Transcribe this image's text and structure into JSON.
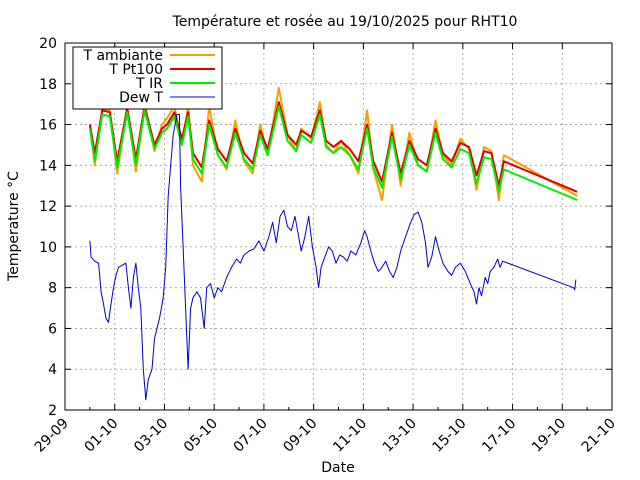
{
  "chart_data": {
    "type": "line",
    "title": "Température et rosée au 19/10/2025 pour RHT10",
    "xlabel": "Date",
    "ylabel": "Temperature °C",
    "x_ticks": [
      "29-09",
      "01-10",
      "03-10",
      "05-10",
      "07-10",
      "09-10",
      "11-10",
      "13-10",
      "15-10",
      "17-10",
      "19-10",
      "21-10"
    ],
    "xlim_days": [
      0,
      22
    ],
    "ylim": [
      2,
      20
    ],
    "y_ticks": [
      "2",
      "4",
      "6",
      "8",
      "10",
      "12",
      "14",
      "16",
      "18",
      "20"
    ],
    "grid": true,
    "legend_position": "top-left",
    "series": [
      {
        "name": "T ambiante",
        "color": "#f5a000",
        "points": [
          [
            1.0,
            16.0
          ],
          [
            1.2,
            14.0
          ],
          [
            1.5,
            16.8
          ],
          [
            1.8,
            16.7
          ],
          [
            2.1,
            13.6
          ],
          [
            2.5,
            16.9
          ],
          [
            2.85,
            13.7
          ],
          [
            3.2,
            17.0
          ],
          [
            3.6,
            14.7
          ],
          [
            3.9,
            16.0
          ],
          [
            4.1,
            16.3
          ],
          [
            4.4,
            16.9
          ],
          [
            4.7,
            15.0
          ],
          [
            4.95,
            16.9
          ],
          [
            5.15,
            14.0
          ],
          [
            5.5,
            13.2
          ],
          [
            5.8,
            16.9
          ],
          [
            6.15,
            14.5
          ],
          [
            6.5,
            13.8
          ],
          [
            6.85,
            16.2
          ],
          [
            7.2,
            14.2
          ],
          [
            7.55,
            13.6
          ],
          [
            7.85,
            16.0
          ],
          [
            8.15,
            14.5
          ],
          [
            8.6,
            17.8
          ],
          [
            8.95,
            15.5
          ],
          [
            9.3,
            14.7
          ],
          [
            9.5,
            15.8
          ],
          [
            9.9,
            15.3
          ],
          [
            10.25,
            17.1
          ],
          [
            10.5,
            15.0
          ],
          [
            10.8,
            14.6
          ],
          [
            11.1,
            15.2
          ],
          [
            11.45,
            14.5
          ],
          [
            11.8,
            13.6
          ],
          [
            12.15,
            16.7
          ],
          [
            12.4,
            13.8
          ],
          [
            12.75,
            12.3
          ],
          [
            13.15,
            16.0
          ],
          [
            13.5,
            13.0
          ],
          [
            13.85,
            15.6
          ],
          [
            14.2,
            14.0
          ],
          [
            14.55,
            13.7
          ],
          [
            14.9,
            16.2
          ],
          [
            15.2,
            14.5
          ],
          [
            15.55,
            14.0
          ],
          [
            15.9,
            15.3
          ],
          [
            16.25,
            14.8
          ],
          [
            16.55,
            12.8
          ],
          [
            16.85,
            14.9
          ],
          [
            17.15,
            14.7
          ],
          [
            17.45,
            12.3
          ],
          [
            17.65,
            14.5
          ],
          [
            20.6,
            12.5
          ]
        ]
      },
      {
        "name": "T Pt100",
        "color": "#dd0000",
        "points": [
          [
            1.0,
            16.0
          ],
          [
            1.2,
            14.6
          ],
          [
            1.5,
            16.7
          ],
          [
            1.8,
            16.6
          ],
          [
            2.1,
            14.2
          ],
          [
            2.5,
            16.8
          ],
          [
            2.85,
            14.3
          ],
          [
            3.2,
            16.9
          ],
          [
            3.6,
            15.0
          ],
          [
            3.9,
            15.8
          ],
          [
            4.1,
            16.0
          ],
          [
            4.4,
            16.6
          ],
          [
            4.7,
            15.3
          ],
          [
            4.95,
            16.6
          ],
          [
            5.15,
            14.6
          ],
          [
            5.5,
            13.9
          ],
          [
            5.8,
            16.2
          ],
          [
            6.15,
            14.8
          ],
          [
            6.5,
            14.2
          ],
          [
            6.85,
            15.8
          ],
          [
            7.2,
            14.6
          ],
          [
            7.55,
            14.1
          ],
          [
            7.85,
            15.7
          ],
          [
            8.15,
            14.8
          ],
          [
            8.6,
            17.1
          ],
          [
            8.95,
            15.5
          ],
          [
            9.3,
            15.0
          ],
          [
            9.5,
            15.7
          ],
          [
            9.9,
            15.4
          ],
          [
            10.25,
            16.7
          ],
          [
            10.5,
            15.2
          ],
          [
            10.8,
            14.9
          ],
          [
            11.1,
            15.2
          ],
          [
            11.45,
            14.8
          ],
          [
            11.8,
            14.2
          ],
          [
            12.15,
            16.0
          ],
          [
            12.4,
            14.2
          ],
          [
            12.75,
            13.2
          ],
          [
            13.15,
            15.6
          ],
          [
            13.5,
            13.6
          ],
          [
            13.85,
            15.2
          ],
          [
            14.2,
            14.3
          ],
          [
            14.55,
            14.0
          ],
          [
            14.9,
            15.8
          ],
          [
            15.2,
            14.6
          ],
          [
            15.55,
            14.2
          ],
          [
            15.9,
            15.1
          ],
          [
            16.25,
            14.9
          ],
          [
            16.55,
            13.5
          ],
          [
            16.85,
            14.7
          ],
          [
            17.15,
            14.6
          ],
          [
            17.45,
            13.0
          ],
          [
            17.65,
            14.2
          ],
          [
            20.6,
            12.7
          ]
        ]
      },
      {
        "name": "T IR",
        "color": "#00ee00",
        "points": [
          [
            1.0,
            15.8
          ],
          [
            1.2,
            14.2
          ],
          [
            1.5,
            16.5
          ],
          [
            1.8,
            16.4
          ],
          [
            2.1,
            13.9
          ],
          [
            2.5,
            16.6
          ],
          [
            2.85,
            14.0
          ],
          [
            3.2,
            16.7
          ],
          [
            3.6,
            14.8
          ],
          [
            3.9,
            15.6
          ],
          [
            4.1,
            15.8
          ],
          [
            4.4,
            16.4
          ],
          [
            4.7,
            15.0
          ],
          [
            4.95,
            16.4
          ],
          [
            5.15,
            14.3
          ],
          [
            5.5,
            13.6
          ],
          [
            5.8,
            16.0
          ],
          [
            6.15,
            14.5
          ],
          [
            6.5,
            13.9
          ],
          [
            6.85,
            15.6
          ],
          [
            7.2,
            14.3
          ],
          [
            7.55,
            13.8
          ],
          [
            7.85,
            15.5
          ],
          [
            8.15,
            14.5
          ],
          [
            8.6,
            16.9
          ],
          [
            8.95,
            15.2
          ],
          [
            9.3,
            14.7
          ],
          [
            9.5,
            15.5
          ],
          [
            9.9,
            15.1
          ],
          [
            10.25,
            16.5
          ],
          [
            10.5,
            14.9
          ],
          [
            10.8,
            14.6
          ],
          [
            11.1,
            14.9
          ],
          [
            11.45,
            14.5
          ],
          [
            11.8,
            13.8
          ],
          [
            12.15,
            15.8
          ],
          [
            12.4,
            13.9
          ],
          [
            12.75,
            12.9
          ],
          [
            13.15,
            15.4
          ],
          [
            13.5,
            13.3
          ],
          [
            13.85,
            15.0
          ],
          [
            14.2,
            14.0
          ],
          [
            14.55,
            13.7
          ],
          [
            14.9,
            15.6
          ],
          [
            15.2,
            14.3
          ],
          [
            15.55,
            13.9
          ],
          [
            15.9,
            14.8
          ],
          [
            16.25,
            14.6
          ],
          [
            16.55,
            13.1
          ],
          [
            16.85,
            14.4
          ],
          [
            17.15,
            14.3
          ],
          [
            17.45,
            12.7
          ],
          [
            17.65,
            13.8
          ],
          [
            20.6,
            12.3
          ]
        ]
      },
      {
        "name": "Dew T",
        "color": "#0000cc",
        "points": [
          [
            1.0,
            10.3
          ],
          [
            1.05,
            9.5
          ],
          [
            1.2,
            9.3
          ],
          [
            1.35,
            9.2
          ],
          [
            1.45,
            7.8
          ],
          [
            1.55,
            7.2
          ],
          [
            1.65,
            6.5
          ],
          [
            1.75,
            6.3
          ],
          [
            1.85,
            7.2
          ],
          [
            1.95,
            8.0
          ],
          [
            2.05,
            8.6
          ],
          [
            2.15,
            9.0
          ],
          [
            2.3,
            9.1
          ],
          [
            2.45,
            9.2
          ],
          [
            2.55,
            8.0
          ],
          [
            2.65,
            7.0
          ],
          [
            2.75,
            8.5
          ],
          [
            2.85,
            9.2
          ],
          [
            2.95,
            8.0
          ],
          [
            3.05,
            7.0
          ],
          [
            3.15,
            4.0
          ],
          [
            3.25,
            2.5
          ],
          [
            3.35,
            3.5
          ],
          [
            3.5,
            4.0
          ],
          [
            3.6,
            5.5
          ],
          [
            3.7,
            6.0
          ],
          [
            3.8,
            6.5
          ],
          [
            3.95,
            7.5
          ],
          [
            4.05,
            9.0
          ],
          [
            4.15,
            12.5
          ],
          [
            4.25,
            14.0
          ],
          [
            4.35,
            15.5
          ],
          [
            4.5,
            16.5
          ],
          [
            4.6,
            16.5
          ],
          [
            4.65,
            13.0
          ],
          [
            4.75,
            10.0
          ],
          [
            4.85,
            7.0
          ],
          [
            4.95,
            4.0
          ],
          [
            5.05,
            7.0
          ],
          [
            5.15,
            7.5
          ],
          [
            5.3,
            7.8
          ],
          [
            5.45,
            7.5
          ],
          [
            5.6,
            6.0
          ],
          [
            5.7,
            8.0
          ],
          [
            5.85,
            8.2
          ],
          [
            6.0,
            7.5
          ],
          [
            6.15,
            8.0
          ],
          [
            6.3,
            7.8
          ],
          [
            6.5,
            8.5
          ],
          [
            6.7,
            9.0
          ],
          [
            6.9,
            9.4
          ],
          [
            7.05,
            9.2
          ],
          [
            7.2,
            9.6
          ],
          [
            7.4,
            9.8
          ],
          [
            7.6,
            9.9
          ],
          [
            7.8,
            10.3
          ],
          [
            8.0,
            9.8
          ],
          [
            8.2,
            10.5
          ],
          [
            8.35,
            11.2
          ],
          [
            8.5,
            10.2
          ],
          [
            8.65,
            11.5
          ],
          [
            8.8,
            11.8
          ],
          [
            8.95,
            11.0
          ],
          [
            9.1,
            10.8
          ],
          [
            9.25,
            11.5
          ],
          [
            9.4,
            10.5
          ],
          [
            9.5,
            9.8
          ],
          [
            9.65,
            10.5
          ],
          [
            9.8,
            11.5
          ],
          [
            9.95,
            10.0
          ],
          [
            10.1,
            9.0
          ],
          [
            10.2,
            8.0
          ],
          [
            10.3,
            9.0
          ],
          [
            10.45,
            9.5
          ],
          [
            10.6,
            10.0
          ],
          [
            10.75,
            9.8
          ],
          [
            10.9,
            9.2
          ],
          [
            11.05,
            9.6
          ],
          [
            11.2,
            9.5
          ],
          [
            11.35,
            9.3
          ],
          [
            11.5,
            9.8
          ],
          [
            11.7,
            9.6
          ],
          [
            11.9,
            10.2
          ],
          [
            12.05,
            10.8
          ],
          [
            12.15,
            10.5
          ],
          [
            12.3,
            9.8
          ],
          [
            12.45,
            9.2
          ],
          [
            12.6,
            8.8
          ],
          [
            12.75,
            9.0
          ],
          [
            12.9,
            9.3
          ],
          [
            13.05,
            8.8
          ],
          [
            13.2,
            8.5
          ],
          [
            13.35,
            9.0
          ],
          [
            13.5,
            9.8
          ],
          [
            13.7,
            10.5
          ],
          [
            13.9,
            11.2
          ],
          [
            14.05,
            11.6
          ],
          [
            14.2,
            11.7
          ],
          [
            14.35,
            11.2
          ],
          [
            14.5,
            10.2
          ],
          [
            14.6,
            9.0
          ],
          [
            14.75,
            9.5
          ],
          [
            14.9,
            10.5
          ],
          [
            15.05,
            9.8
          ],
          [
            15.2,
            9.2
          ],
          [
            15.4,
            8.8
          ],
          [
            15.55,
            8.6
          ],
          [
            15.7,
            9.0
          ],
          [
            15.9,
            9.2
          ],
          [
            16.1,
            8.8
          ],
          [
            16.3,
            8.2
          ],
          [
            16.45,
            7.8
          ],
          [
            16.55,
            7.2
          ],
          [
            16.65,
            8.0
          ],
          [
            16.75,
            7.6
          ],
          [
            16.9,
            8.5
          ],
          [
            17.0,
            8.2
          ],
          [
            17.1,
            8.8
          ],
          [
            17.25,
            9.0
          ],
          [
            17.4,
            9.4
          ],
          [
            17.5,
            9.0
          ],
          [
            17.6,
            9.3
          ],
          [
            20.45,
            8.0
          ],
          [
            20.5,
            7.9
          ],
          [
            20.55,
            8.4
          ]
        ]
      }
    ]
  }
}
